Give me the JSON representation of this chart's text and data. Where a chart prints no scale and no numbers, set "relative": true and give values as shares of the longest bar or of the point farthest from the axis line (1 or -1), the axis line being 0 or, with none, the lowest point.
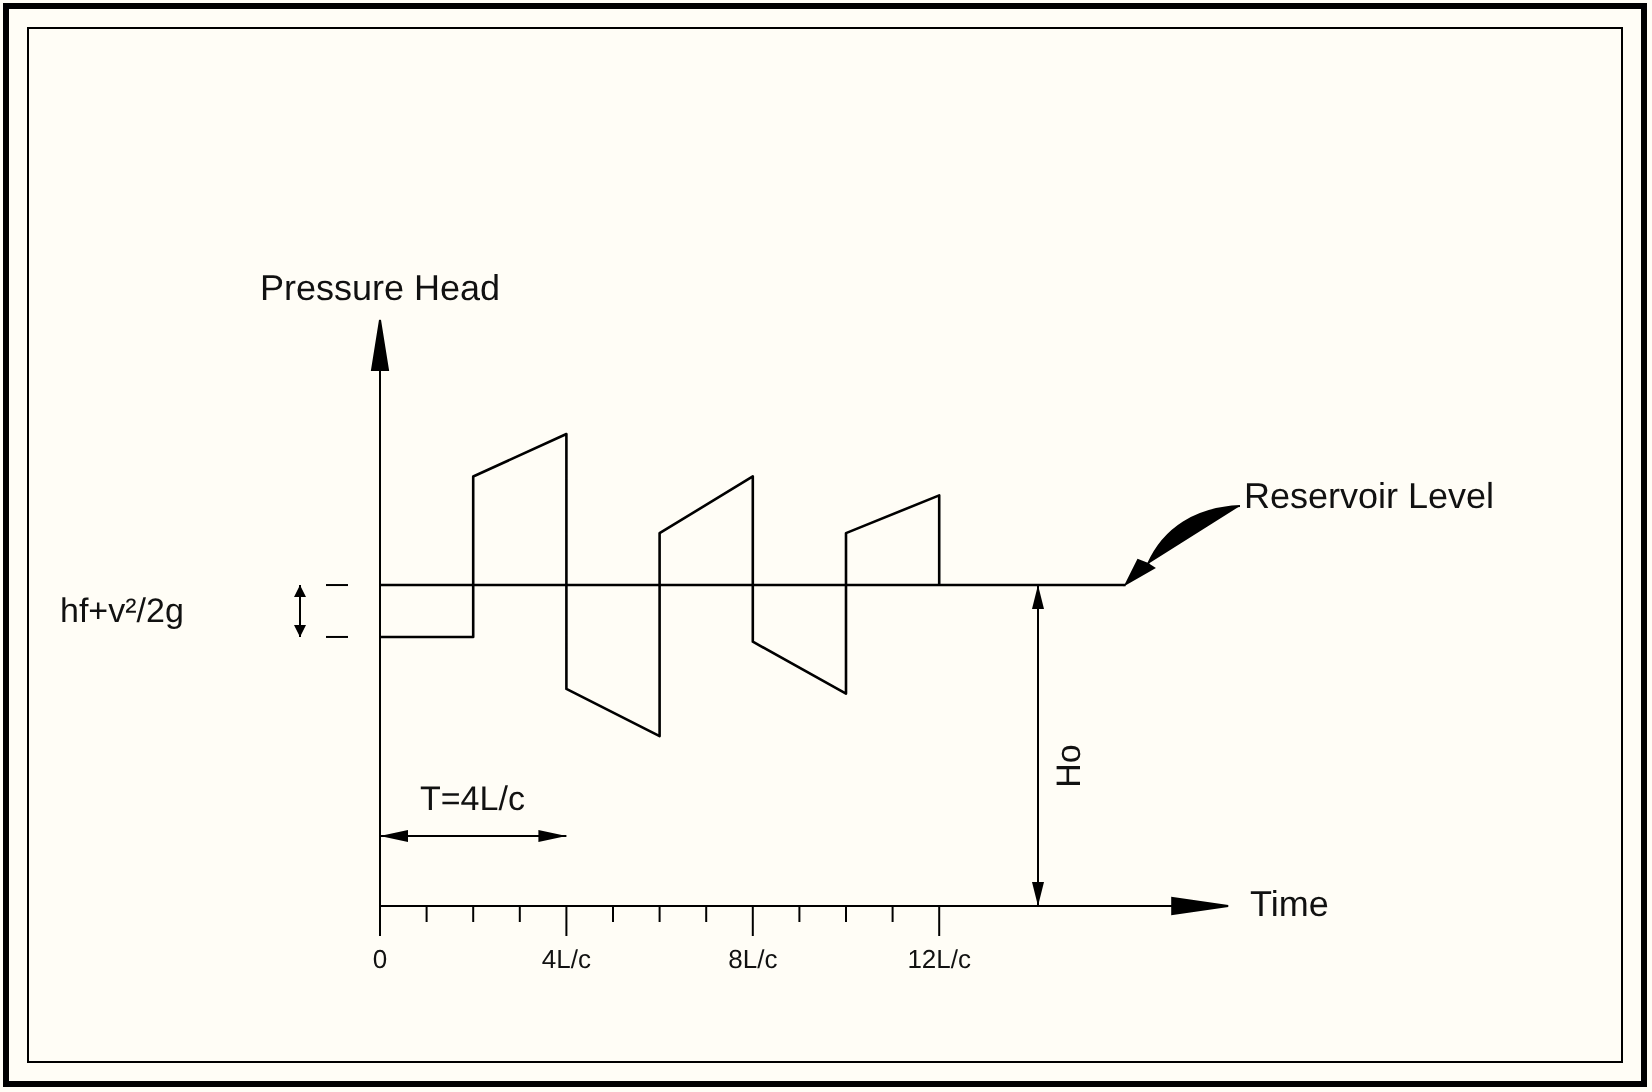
{
  "chart_data": {
    "type": "line",
    "relative": true,
    "xlabel": "Time",
    "ylabel": "Pressure Head",
    "xlim": [
      0,
      17
    ],
    "xticks": [
      {
        "value": 0,
        "label": "0"
      },
      {
        "value": 1,
        "label": null
      },
      {
        "value": 2,
        "label": null
      },
      {
        "value": 3,
        "label": null
      },
      {
        "value": 4,
        "label": "4L/c"
      },
      {
        "value": 5,
        "label": null
      },
      {
        "value": 6,
        "label": null
      },
      {
        "value": 7,
        "label": null
      },
      {
        "value": 8,
        "label": "8L/c"
      },
      {
        "value": 9,
        "label": null
      },
      {
        "value": 10,
        "label": null
      },
      {
        "value": 11,
        "label": null
      },
      {
        "value": 12,
        "label": "12L/c"
      }
    ],
    "annotations": [
      "Reservoir Level",
      "hf+v²/2g",
      "Ho",
      "T=4L/c"
    ],
    "marker": "none",
    "line_style": "solid",
    "grid": false,
    "series": [
      {
        "color": "#000000",
        "x": [
          0,
          2,
          2,
          4,
          4,
          6,
          6,
          8,
          8,
          10,
          10,
          12,
          12
        ],
        "values": [
          0.57,
          0.57,
          0.91,
          1,
          0.46,
          0.36,
          0.79,
          0.91,
          0.56,
          0.45,
          0.79,
          0.87,
          0.68
        ]
      },
      {
        "color": "#000000",
        "x": [
          0,
          16
        ],
        "values": [
          0.68,
          0.68
        ]
      }
    ]
  }
}
